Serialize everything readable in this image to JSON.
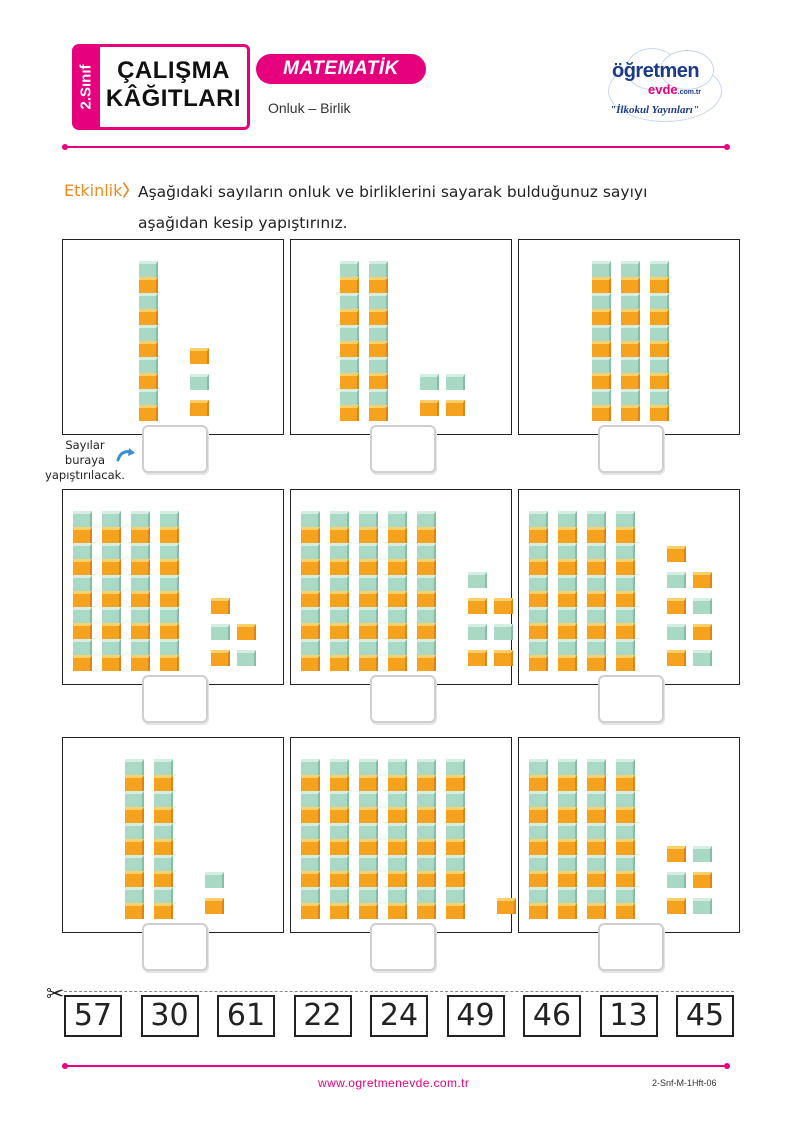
{
  "header": {
    "grade": "2.Sınıf",
    "title_line1": "ÇALIŞMA",
    "title_line2": "KÂĞITLARI",
    "subject": "MATEMATİK",
    "topic": "Onluk – Birlik"
  },
  "logo": {
    "name": "öğretmen",
    "name2": "evde",
    "domain": ".com.tr",
    "tagline": "\"İlkokul Yayınları\""
  },
  "activity": {
    "label": "Etkinlik",
    "chevron": "〉",
    "text": "Aşağıdaki sayıların onluk ve birliklerini sayarak bulduğunuz sayıyı aşağıdan kesip yapıştırınız."
  },
  "paste_note": "Sayılar buraya yapıştırılacak.",
  "panels": [
    {
      "tens": 1,
      "ones": 3
    },
    {
      "tens": 2,
      "ones": 4
    },
    {
      "tens": 3,
      "ones": 0
    },
    {
      "tens": 4,
      "ones": 5
    },
    {
      "tens": 5,
      "ones": 7
    },
    {
      "tens": 4,
      "ones": 9
    },
    {
      "tens": 2,
      "ones": 2
    },
    {
      "tens": 6,
      "ones": 1
    },
    {
      "tens": 4,
      "ones": 6
    }
  ],
  "cut_numbers": [
    "57",
    "30",
    "61",
    "22",
    "24",
    "49",
    "46",
    "13",
    "45"
  ],
  "footer": {
    "url": "www.ogretmenevde.com.tr",
    "code": "2-Snf-M-1Hft-06"
  },
  "colors": {
    "brand_pink": "#e6007e",
    "block_orange": "#f5a21f",
    "block_green": "#a9d8c4",
    "activity_orange": "#f08a1e"
  }
}
